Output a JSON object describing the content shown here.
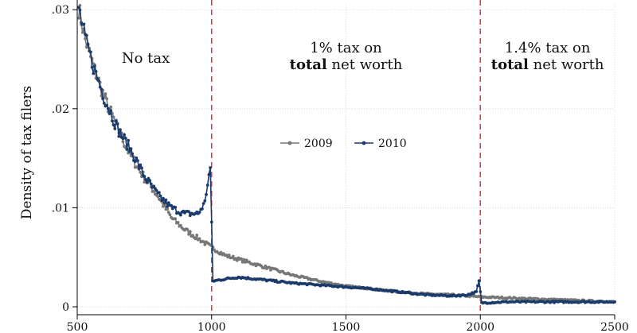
{
  "chart_data": {
    "type": "line",
    "title": "",
    "xlabel": "",
    "ylabel": "Density of tax filers",
    "xlim": [
      500,
      2500
    ],
    "ylim": [
      -0.0008,
      0.0305
    ],
    "x_ticks": [
      500,
      1000,
      1500,
      2000,
      2500
    ],
    "x_tick_labels": [
      "500",
      "1000",
      "1500",
      "2000",
      "2500"
    ],
    "y_ticks": [
      0,
      0.01,
      0.02,
      0.03
    ],
    "y_tick_labels": [
      "0",
      ".01",
      ".02",
      ".03"
    ],
    "grid": true,
    "legend": {
      "placement": "center",
      "entries": [
        "2009",
        "2010"
      ]
    },
    "thresholds": [
      1000,
      2000
    ],
    "annotations": [
      {
        "lines": [
          {
            "parts": [
              {
                "text": "No tax",
                "bold": false
              }
            ]
          }
        ]
      },
      {
        "lines": [
          {
            "parts": [
              {
                "text": "1% tax on",
                "bold": false
              }
            ]
          },
          {
            "parts": [
              {
                "text": "total",
                "bold": true
              },
              {
                "text": " net worth",
                "bold": false
              }
            ]
          }
        ]
      },
      {
        "lines": [
          {
            "parts": [
              {
                "text": "1.4% tax on",
                "bold": false
              }
            ]
          },
          {
            "parts": [
              {
                "text": "total",
                "bold": true
              },
              {
                "text": " net worth",
                "bold": false
              }
            ]
          }
        ]
      }
    ],
    "series": [
      {
        "name": "2009",
        "color": "#777777",
        "points": [
          [
            505,
            0.0302
          ],
          [
            530,
            0.027
          ],
          [
            560,
            0.0243
          ],
          [
            600,
            0.0212
          ],
          [
            650,
            0.018
          ],
          [
            700,
            0.0152
          ],
          [
            750,
            0.013
          ],
          [
            800,
            0.0112
          ],
          [
            850,
            0.009
          ],
          [
            900,
            0.0078
          ],
          [
            950,
            0.0069
          ],
          [
            1000,
            0.006
          ],
          [
            1050,
            0.0052
          ],
          [
            1100,
            0.0048
          ],
          [
            1200,
            0.004
          ],
          [
            1300,
            0.0032
          ],
          [
            1400,
            0.0026
          ],
          [
            1500,
            0.0021
          ],
          [
            1600,
            0.0018
          ],
          [
            1700,
            0.0015
          ],
          [
            1800,
            0.0013
          ],
          [
            1900,
            0.0012
          ],
          [
            2000,
            0.001
          ],
          [
            2100,
            0.0009
          ],
          [
            2200,
            0.0008
          ],
          [
            2300,
            0.0007
          ],
          [
            2400,
            0.0006
          ],
          [
            2500,
            0.0005
          ]
        ]
      },
      {
        "name": "2010",
        "color": "#1a3a6b",
        "points": [
          [
            505,
            0.0302
          ],
          [
            530,
            0.027
          ],
          [
            560,
            0.0243
          ],
          [
            600,
            0.0212
          ],
          [
            650,
            0.018
          ],
          [
            700,
            0.0158
          ],
          [
            750,
            0.0132
          ],
          [
            800,
            0.0113
          ],
          [
            850,
            0.01
          ],
          [
            900,
            0.0094
          ],
          [
            950,
            0.0094
          ],
          [
            975,
            0.0105
          ],
          [
            985,
            0.0125
          ],
          [
            995,
            0.014
          ],
          [
            1005,
            0.0026
          ],
          [
            1050,
            0.0028
          ],
          [
            1100,
            0.003
          ],
          [
            1200,
            0.0027
          ],
          [
            1300,
            0.0024
          ],
          [
            1400,
            0.0022
          ],
          [
            1500,
            0.002
          ],
          [
            1600,
            0.0018
          ],
          [
            1700,
            0.0015
          ],
          [
            1800,
            0.0012
          ],
          [
            1900,
            0.0011
          ],
          [
            1950,
            0.0012
          ],
          [
            1985,
            0.0015
          ],
          [
            1995,
            0.0026
          ],
          [
            2005,
            0.0004
          ],
          [
            2100,
            0.0005
          ],
          [
            2200,
            0.0005
          ],
          [
            2300,
            0.0005
          ],
          [
            2400,
            0.0005
          ],
          [
            2500,
            0.0005
          ]
        ]
      }
    ]
  }
}
